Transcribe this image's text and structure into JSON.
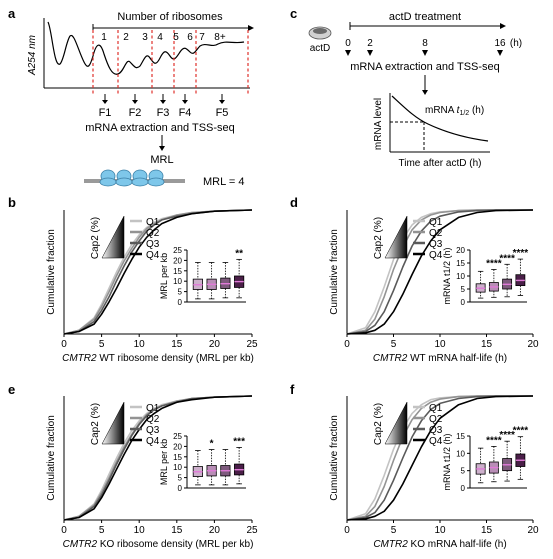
{
  "panels": {
    "a": {
      "letter": "a",
      "header": "Number of ribosomes",
      "ylabel": "A254 nm",
      "peak_labels": [
        "1",
        "2",
        "3",
        "4",
        "5",
        "6",
        "7",
        "8+"
      ],
      "fractions": [
        "F1",
        "F2",
        "F3",
        "F4",
        "F5"
      ],
      "step": "mRNA extraction and TSS-seq",
      "result": "MRL",
      "mrl_eq": "MRL = 4"
    },
    "c": {
      "letter": "c",
      "drug": "actD",
      "treatment": "actD treatment",
      "timepoints": [
        "0",
        "2",
        "8",
        "16"
      ],
      "unit": "(h)",
      "step": "mRNA extraction and TSS-seq",
      "inset_ylabel": "mRNA level",
      "inset_xlabel": "Time after actD (h)",
      "inset_curve_label": "mRNA t1/2 (h)"
    }
  },
  "colors": {
    "Q1": "#c3c3c3",
    "Q2": "#939393",
    "Q3": "#5a5a5a",
    "Q4": "#000000",
    "box_Q1": "#cdb0cc",
    "box_Q2": "#b88db6",
    "box_Q3": "#7e5a7d",
    "box_Q4": "#4a1f48",
    "median": "#e07ad8",
    "red_dash": "#e0312b",
    "ribosome": "#7ec7ea"
  },
  "chart_data": [
    {
      "id": "b",
      "letter": "b",
      "type": "line",
      "title": "",
      "xlabel_italic": "CMTR2",
      "xlabel_rest": " WT ribosome density (MRL per kb)",
      "ylabel": "Cumulative fraction",
      "xlim": [
        0,
        25
      ],
      "ylim": [
        0,
        1
      ],
      "xticks": [
        "0",
        "5",
        "10",
        "15",
        "20",
        "25"
      ],
      "yticks": [],
      "legend_title": "Cap2 (%)",
      "series": [
        {
          "name": "Q1",
          "x": [
            0,
            2,
            4,
            5,
            6,
            7,
            8,
            9,
            10,
            11,
            12,
            13,
            15,
            17,
            20,
            25
          ],
          "y": [
            0,
            0.03,
            0.13,
            0.24,
            0.37,
            0.5,
            0.62,
            0.72,
            0.8,
            0.86,
            0.9,
            0.93,
            0.96,
            0.98,
            0.99,
            1.0
          ]
        },
        {
          "name": "Q2",
          "x": [
            0,
            2,
            4,
            5,
            6,
            7,
            8,
            9,
            10,
            11,
            12,
            13,
            15,
            17,
            20,
            25
          ],
          "y": [
            0,
            0.03,
            0.12,
            0.22,
            0.34,
            0.47,
            0.59,
            0.69,
            0.78,
            0.85,
            0.89,
            0.92,
            0.96,
            0.98,
            0.99,
            1.0
          ]
        },
        {
          "name": "Q3",
          "x": [
            0,
            2,
            4,
            5,
            6,
            7,
            8,
            9,
            10,
            11,
            12,
            13,
            15,
            17,
            20,
            25
          ],
          "y": [
            0,
            0.02,
            0.1,
            0.19,
            0.3,
            0.43,
            0.55,
            0.66,
            0.75,
            0.83,
            0.88,
            0.92,
            0.95,
            0.97,
            0.99,
            1.0
          ]
        },
        {
          "name": "Q4",
          "x": [
            0,
            2,
            4,
            5,
            6,
            7,
            8,
            9,
            10,
            11,
            12,
            13,
            15,
            17,
            20,
            25
          ],
          "y": [
            0,
            0.02,
            0.08,
            0.16,
            0.26,
            0.37,
            0.49,
            0.6,
            0.7,
            0.78,
            0.84,
            0.89,
            0.94,
            0.97,
            0.99,
            1.0
          ]
        }
      ],
      "inset": {
        "ylabel": "MRL per kb",
        "ylim": [
          0,
          25
        ],
        "yticks": [
          "0",
          "5",
          "10",
          "15",
          "20",
          "25"
        ],
        "stars": [
          "",
          "",
          "",
          "**"
        ],
        "boxes": [
          {
            "name": "Q1",
            "min": 1.5,
            "q1": 6,
            "median": 8.3,
            "q3": 11,
            "max": 19
          },
          {
            "name": "Q2",
            "min": 1.5,
            "q1": 6,
            "median": 8.5,
            "q3": 11,
            "max": 19
          },
          {
            "name": "Q3",
            "min": 2,
            "q1": 6.5,
            "median": 8.8,
            "q3": 11.5,
            "max": 19
          },
          {
            "name": "Q4",
            "min": 2,
            "q1": 7,
            "median": 9.8,
            "q3": 12.5,
            "max": 20.5
          }
        ]
      }
    },
    {
      "id": "d",
      "letter": "d",
      "type": "line",
      "title": "",
      "xlabel_italic": "CMTR2",
      "xlabel_rest": " WT mRNA half-life (h)",
      "ylabel": "Cumulative fraction",
      "xlim": [
        0,
        20
      ],
      "ylim": [
        0,
        1
      ],
      "xticks": [
        "0",
        "5",
        "10",
        "15",
        "20"
      ],
      "yticks": [],
      "legend_title": "Cap2 (%)",
      "series": [
        {
          "name": "Q1",
          "x": [
            0,
            2,
            3,
            4,
            5,
            6,
            7,
            8,
            9,
            10,
            12,
            14,
            16,
            20
          ],
          "y": [
            0,
            0.05,
            0.18,
            0.38,
            0.6,
            0.77,
            0.88,
            0.94,
            0.97,
            0.985,
            0.995,
            1,
            1,
            1
          ]
        },
        {
          "name": "Q2",
          "x": [
            0,
            2,
            3,
            4,
            5,
            6,
            7,
            8,
            9,
            10,
            12,
            14,
            16,
            20
          ],
          "y": [
            0,
            0.03,
            0.12,
            0.3,
            0.52,
            0.7,
            0.84,
            0.92,
            0.96,
            0.98,
            0.995,
            1,
            1,
            1
          ]
        },
        {
          "name": "Q3",
          "x": [
            0,
            2,
            3,
            4,
            5,
            6,
            7,
            8,
            9,
            10,
            12,
            14,
            16,
            20
          ],
          "y": [
            0,
            0.02,
            0.07,
            0.18,
            0.35,
            0.54,
            0.71,
            0.83,
            0.91,
            0.95,
            0.985,
            0.995,
            1,
            1
          ]
        },
        {
          "name": "Q4",
          "x": [
            0,
            2,
            3,
            4,
            5,
            6,
            7,
            8,
            9,
            10,
            12,
            14,
            16,
            20
          ],
          "y": [
            0,
            0.01,
            0.03,
            0.08,
            0.18,
            0.32,
            0.48,
            0.63,
            0.75,
            0.84,
            0.94,
            0.98,
            0.995,
            1
          ]
        }
      ],
      "inset": {
        "ylabel": "mRNA t1/2 (h)",
        "ylim": [
          0,
          20
        ],
        "yticks": [
          "0",
          "5",
          "10",
          "15",
          "20"
        ],
        "stars": [
          "",
          "****",
          "****",
          "****"
        ],
        "boxes": [
          {
            "name": "Q1",
            "min": 1.5,
            "q1": 3.8,
            "median": 5.3,
            "q3": 7,
            "max": 11.8
          },
          {
            "name": "Q2",
            "min": 1.8,
            "q1": 4.2,
            "median": 5.8,
            "q3": 7.5,
            "max": 12.5
          },
          {
            "name": "Q3",
            "min": 2,
            "q1": 5,
            "median": 6.8,
            "q3": 8.8,
            "max": 14.5
          },
          {
            "name": "Q4",
            "min": 2.5,
            "q1": 6.3,
            "median": 8.3,
            "q3": 10.5,
            "max": 16.5
          }
        ]
      }
    },
    {
      "id": "e",
      "letter": "e",
      "type": "line",
      "title": "",
      "xlabel_italic": "CMTR2",
      "xlabel_rest": " KO ribosome density (MRL per kb)",
      "ylabel": "Cumulative fraction",
      "xlim": [
        0,
        25
      ],
      "ylim": [
        0,
        1
      ],
      "xticks": [
        "0",
        "5",
        "10",
        "15",
        "20",
        "25"
      ],
      "yticks": [],
      "legend_title": "Cap2 (%)",
      "series": [
        {
          "name": "Q1",
          "x": [
            0,
            2,
            4,
            5,
            6,
            7,
            8,
            9,
            10,
            11,
            12,
            13,
            15,
            17,
            20,
            25
          ],
          "y": [
            0,
            0.03,
            0.13,
            0.24,
            0.37,
            0.5,
            0.62,
            0.72,
            0.8,
            0.86,
            0.9,
            0.93,
            0.96,
            0.98,
            0.99,
            1.0
          ]
        },
        {
          "name": "Q2",
          "x": [
            0,
            2,
            4,
            5,
            6,
            7,
            8,
            9,
            10,
            11,
            12,
            13,
            15,
            17,
            20,
            25
          ],
          "y": [
            0,
            0.03,
            0.12,
            0.22,
            0.34,
            0.47,
            0.59,
            0.69,
            0.78,
            0.85,
            0.89,
            0.92,
            0.96,
            0.98,
            0.99,
            1.0
          ]
        },
        {
          "name": "Q3",
          "x": [
            0,
            2,
            4,
            5,
            6,
            7,
            8,
            9,
            10,
            11,
            12,
            13,
            15,
            17,
            20,
            25
          ],
          "y": [
            0,
            0.02,
            0.11,
            0.2,
            0.32,
            0.45,
            0.57,
            0.68,
            0.77,
            0.84,
            0.89,
            0.92,
            0.95,
            0.98,
            0.99,
            1.0
          ]
        },
        {
          "name": "Q4",
          "x": [
            0,
            2,
            4,
            5,
            6,
            7,
            8,
            9,
            10,
            11,
            12,
            13,
            15,
            17,
            20,
            25
          ],
          "y": [
            0,
            0.02,
            0.09,
            0.18,
            0.29,
            0.41,
            0.53,
            0.64,
            0.73,
            0.81,
            0.86,
            0.9,
            0.95,
            0.97,
            0.99,
            1.0
          ]
        }
      ],
      "inset": {
        "ylabel": "MRL per kb",
        "ylim": [
          0,
          25
        ],
        "yticks": [
          "0",
          "5",
          "10",
          "15",
          "20",
          "25"
        ],
        "stars": [
          "",
          "*",
          "",
          "***"
        ],
        "boxes": [
          {
            "name": "Q1",
            "min": 1.5,
            "q1": 5.5,
            "median": 7.8,
            "q3": 10.3,
            "max": 18
          },
          {
            "name": "Q2",
            "min": 1.5,
            "q1": 5.8,
            "median": 8.3,
            "q3": 10.8,
            "max": 18.5
          },
          {
            "name": "Q3",
            "min": 1.5,
            "q1": 5.8,
            "median": 8.3,
            "q3": 10.8,
            "max": 18.5
          },
          {
            "name": "Q4",
            "min": 2,
            "q1": 6.3,
            "median": 8.8,
            "q3": 11.5,
            "max": 19.5
          }
        ]
      }
    },
    {
      "id": "f",
      "letter": "f",
      "type": "line",
      "title": "",
      "xlabel_italic": "CMTR2",
      "xlabel_rest": " KO mRNA half-life (h)",
      "ylabel": "Cumulative fraction",
      "xlim": [
        0,
        20
      ],
      "ylim": [
        0,
        1
      ],
      "xticks": [
        "0",
        "5",
        "10",
        "15",
        "20"
      ],
      "yticks": [],
      "legend_title": "Cap2 (%)",
      "series": [
        {
          "name": "Q1",
          "x": [
            0,
            2,
            3,
            4,
            5,
            6,
            7,
            8,
            9,
            10,
            12,
            14,
            16,
            20
          ],
          "y": [
            0,
            0.05,
            0.17,
            0.36,
            0.57,
            0.74,
            0.86,
            0.93,
            0.97,
            0.985,
            0.995,
            1,
            1,
            1
          ]
        },
        {
          "name": "Q2",
          "x": [
            0,
            2,
            3,
            4,
            5,
            6,
            7,
            8,
            9,
            10,
            12,
            14,
            16,
            20
          ],
          "y": [
            0,
            0.03,
            0.11,
            0.27,
            0.48,
            0.67,
            0.81,
            0.9,
            0.95,
            0.975,
            0.995,
            1,
            1,
            1
          ]
        },
        {
          "name": "Q3",
          "x": [
            0,
            2,
            3,
            4,
            5,
            6,
            7,
            8,
            9,
            10,
            12,
            14,
            16,
            20
          ],
          "y": [
            0,
            0.02,
            0.06,
            0.16,
            0.32,
            0.5,
            0.67,
            0.8,
            0.89,
            0.94,
            0.98,
            0.995,
            1,
            1
          ]
        },
        {
          "name": "Q4",
          "x": [
            0,
            2,
            3,
            4,
            5,
            6,
            7,
            8,
            9,
            10,
            12,
            14,
            16,
            20
          ],
          "y": [
            0,
            0.01,
            0.03,
            0.07,
            0.16,
            0.29,
            0.44,
            0.59,
            0.72,
            0.82,
            0.93,
            0.98,
            0.995,
            1
          ]
        }
      ],
      "inset": {
        "ylabel": "mRNA t1/2 (h)",
        "ylim": [
          0,
          15
        ],
        "yticks": [
          "0",
          "5",
          "10",
          "15"
        ],
        "stars": [
          "",
          "****",
          "****",
          "****"
        ],
        "boxes": [
          {
            "name": "Q1",
            "min": 1.5,
            "q1": 4,
            "median": 5.5,
            "q3": 7,
            "max": 11.5
          },
          {
            "name": "Q2",
            "min": 1.8,
            "q1": 4.3,
            "median": 5.9,
            "q3": 7.5,
            "max": 12
          },
          {
            "name": "Q3",
            "min": 2,
            "q1": 5,
            "median": 6.7,
            "q3": 8.5,
            "max": 13.5
          },
          {
            "name": "Q4",
            "min": 2.5,
            "q1": 6.2,
            "median": 8,
            "q3": 9.8,
            "max": 14.8
          }
        ]
      }
    }
  ]
}
